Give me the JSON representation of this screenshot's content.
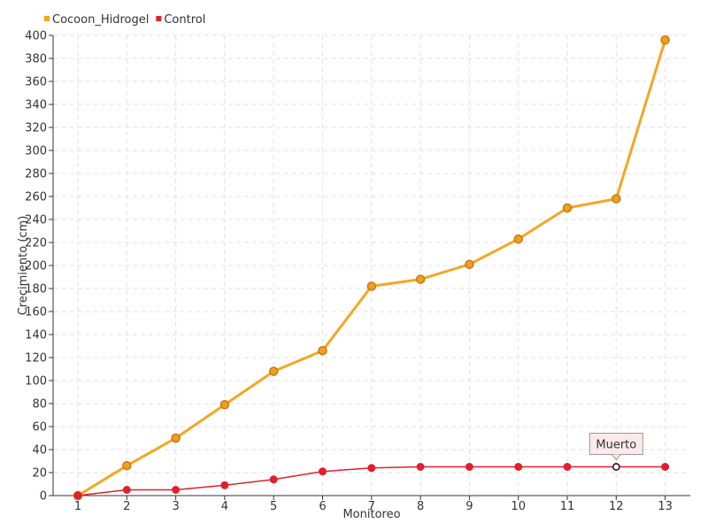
{
  "chart_data": {
    "type": "line",
    "title": "",
    "xlabel": "Monitoreo",
    "ylabel": "Crecimiento (cm)",
    "categories": [
      "1",
      "2",
      "3",
      "4",
      "5",
      "6",
      "7",
      "8",
      "9",
      "10",
      "11",
      "12",
      "13"
    ],
    "ylim": [
      0,
      400
    ],
    "ytick_step": 20,
    "grid": true,
    "legend_position": "top-left",
    "series": [
      {
        "name": "Cocoon_Hidrogel",
        "color": "#f5a623",
        "values": [
          0,
          26,
          50,
          79,
          108,
          126,
          182,
          188,
          201,
          223,
          250,
          258,
          396
        ]
      },
      {
        "name": "Control",
        "color": "#e0202e",
        "values": [
          0,
          5,
          5,
          9,
          14,
          21,
          24,
          25,
          25,
          25,
          25,
          25,
          25
        ]
      }
    ],
    "annotations": [
      {
        "text": "Muerto",
        "series": "Control",
        "category": "12"
      }
    ]
  }
}
